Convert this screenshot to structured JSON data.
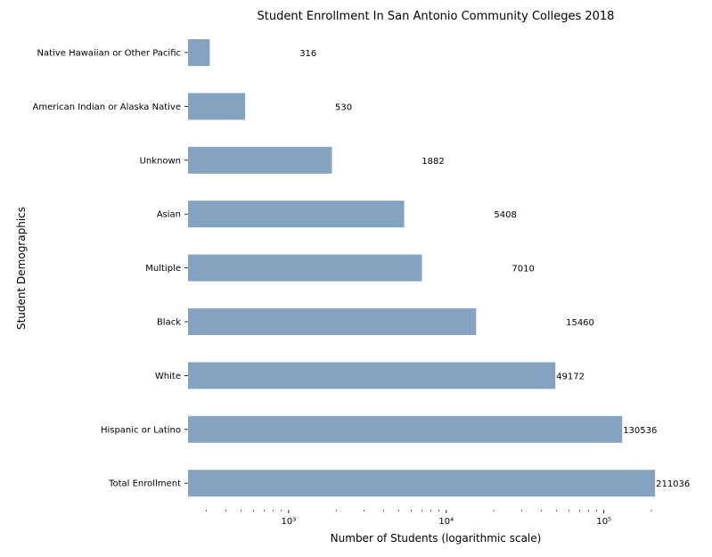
{
  "chart_data": {
    "type": "bar",
    "orientation": "horizontal",
    "title": "Student Enrollment In San Antonio Community Colleges 2018",
    "xlabel": "Number of Students (logarithmic scale)",
    "ylabel": "Student Demographics",
    "x_scale": "log",
    "xlim": [
      230,
      240000
    ],
    "x_ticks": [
      {
        "value": 1000,
        "label": "10³"
      },
      {
        "value": 10000,
        "label": "10⁴"
      },
      {
        "value": 100000,
        "label": "10⁵"
      }
    ],
    "categories": [
      "Native Hawaiian or Other Pacific",
      "American Indian or Alaska Native",
      "Unknown",
      "Asian",
      "Multiple",
      "Black",
      "White",
      "Hispanic or Latino",
      "Total Enrollment"
    ],
    "values": [
      316,
      530,
      1882,
      5408,
      7010,
      15460,
      49172,
      130536,
      211036
    ],
    "value_labels": [
      "316",
      "530",
      "1882",
      "5408",
      "7010",
      "15460",
      "49172",
      "130536",
      "211036"
    ],
    "bar_color": "#83a3c1",
    "grid": false,
    "legend": "none"
  }
}
